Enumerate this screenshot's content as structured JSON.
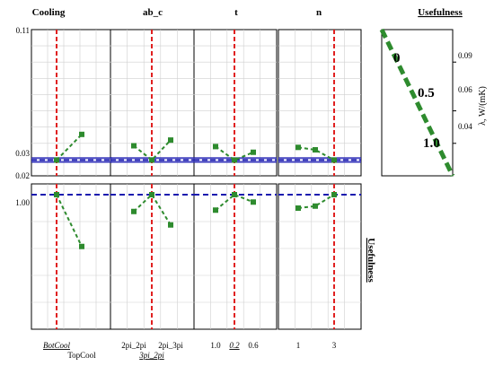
{
  "colors": {
    "series": "#2e8b2e",
    "current_value": "#e02020",
    "reference": "#1a1aaf",
    "reference_band": "#7f7fd8",
    "grid": "#cfcfcf",
    "frame": "#000000"
  },
  "factor_names": [
    "Cooling",
    "ab_c",
    "t",
    "n"
  ],
  "column_headers": {
    "cooling": "Cooling",
    "ab_c": "ab_c",
    "t": "t",
    "n": "n",
    "usefulness": "Usefulness"
  },
  "row_label_usefulness": "Usefulness",
  "y_top_ticks": {
    "max": "0.11",
    "mid": "0.03",
    "min": "0.02"
  },
  "y_bottom_ticks": {
    "one": "1.00"
  },
  "cooling_ticks": {
    "bot": "BotCool",
    "top": "TopCool"
  },
  "abc_ticks": {
    "a": "2pi_2pi",
    "b": "3pi_2pi",
    "c": "2pi_3pi"
  },
  "t_ticks": {
    "a": "1.0",
    "b": "0.2",
    "c": "0.6"
  },
  "n_ticks": {
    "a": "1",
    "b": "3"
  },
  "use_panel": {
    "ylabel": "λ, W/(mK)",
    "ticks": {
      "a": "0.09",
      "b": "0.06",
      "c": "0.04"
    },
    "labels": {
      "zero": "0",
      "half": "0.5",
      "one": "1.0"
    }
  },
  "chart_data": {
    "type": "line",
    "title": "",
    "prediction_profiler": {
      "response": {
        "ylim": [
          0.02,
          0.11
        ],
        "current_value": 0.0297,
        "band": [
          0.0285,
          0.031
        ]
      },
      "desirability": {
        "ylim": [
          0.0,
          1.08
        ],
        "current_value": 1.0
      },
      "factors": [
        {
          "name": "Cooling",
          "levels": [
            "BotCool",
            "TopCool"
          ],
          "current_level": "BotCool",
          "response": [
            0.0297,
            0.0455
          ],
          "desirability": [
            1.0,
            0.615
          ]
        },
        {
          "name": "ab_c",
          "levels": [
            "2pi_2pi",
            "3pi_2pi",
            "2pi_3pi"
          ],
          "current_level": "3pi_2pi",
          "response": [
            0.0385,
            0.0297,
            0.042
          ],
          "desirability": [
            0.875,
            1.0,
            0.775
          ]
        },
        {
          "name": "t",
          "levels": [
            "1.0",
            "0.2",
            "0.6"
          ],
          "current_level": "0.2",
          "response": [
            0.038,
            0.0297,
            0.0345
          ],
          "desirability": [
            0.885,
            1.0,
            0.945
          ]
        },
        {
          "name": "n",
          "levels": [
            "1",
            "",
            "3"
          ],
          "current_level": "3",
          "response": [
            0.0375,
            0.036,
            0.0297
          ],
          "desirability": [
            0.9,
            0.915,
            1.0
          ]
        }
      ]
    },
    "desirability_function": {
      "xlabel": "λ, W/(mK)",
      "yrange": [
        0.02,
        0.11
      ],
      "usefulness_range": [
        0.0,
        1.0
      ],
      "points": [
        {
          "lambda": 0.11,
          "usefulness": 0.0
        },
        {
          "lambda": 0.065,
          "usefulness": 0.5
        },
        {
          "lambda": 0.02,
          "usefulness": 1.0
        }
      ]
    }
  }
}
